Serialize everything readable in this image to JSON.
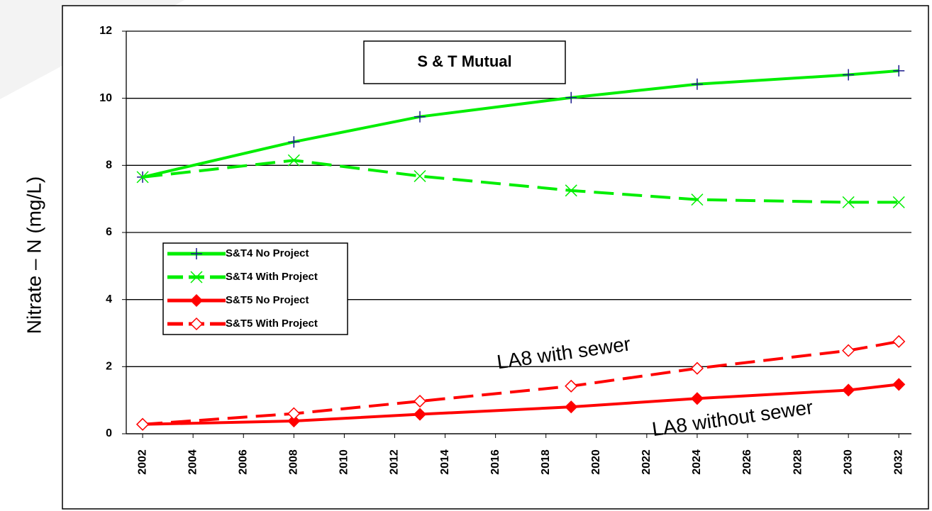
{
  "chart_data": {
    "type": "line",
    "title": "S & T Mutual",
    "y_label": "Nitrate – N (mg/L)",
    "x": [
      2002,
      2008,
      2013,
      2019,
      2024,
      2030,
      2032
    ],
    "series": [
      {
        "name": "S&T4 No Project",
        "color": "#00ee00",
        "dashed": false,
        "marker": "plus",
        "marker_color": "#1a1a8c",
        "values": [
          7.65,
          8.7,
          9.45,
          10.02,
          10.42,
          10.7,
          10.82
        ]
      },
      {
        "name": "S&T4 With Project",
        "color": "#00ee00",
        "dashed": true,
        "marker": "x",
        "marker_color": "#00ee00",
        "values": [
          7.65,
          8.15,
          7.68,
          7.25,
          6.98,
          6.9,
          6.9
        ]
      },
      {
        "name": "S&T5 No Project",
        "color": "#ff0000",
        "dashed": false,
        "marker": "diamond",
        "marker_color": "#ff0000",
        "values": [
          0.28,
          0.38,
          0.58,
          0.8,
          1.05,
          1.3,
          1.47
        ]
      },
      {
        "name": "S&T5 With Project",
        "color": "#ff0000",
        "dashed": true,
        "marker": "open-diamond",
        "marker_color": "#ff0000",
        "values": [
          0.28,
          0.6,
          0.97,
          1.42,
          1.95,
          2.48,
          2.75
        ]
      }
    ],
    "annotations": [
      "LA8 with sewer",
      "LA8 without sewer"
    ],
    "xlim": [
      2001.35,
      2032.5
    ],
    "xticks": [
      2002,
      2004,
      2006,
      2008,
      2010,
      2012,
      2014,
      2016,
      2018,
      2020,
      2022,
      2024,
      2026,
      2028,
      2030,
      2032
    ],
    "ylim": [
      0,
      12
    ],
    "yticks": [
      0,
      2,
      4,
      6,
      8,
      10,
      12
    ],
    "grid": true
  }
}
